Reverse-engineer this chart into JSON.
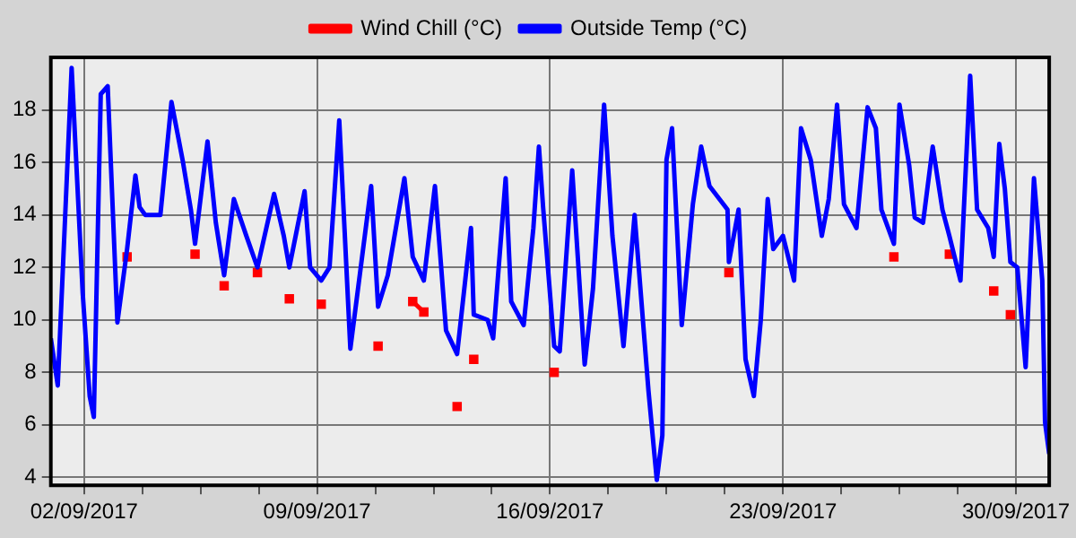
{
  "chart_data": {
    "type": "line",
    "legend": "top",
    "grid": true,
    "marker": "none",
    "line_style": "solid",
    "xlim": [
      "2017-09-01",
      "2017-10-01"
    ],
    "xticks": [
      {
        "value": "2017-09-02",
        "label": "02/09/2017"
      },
      {
        "value": "2017-09-03T18:00",
        "label": null
      },
      {
        "value": "2017-09-05T12:00",
        "label": null
      },
      {
        "value": "2017-09-07T06:00",
        "label": null
      },
      {
        "value": "2017-09-09",
        "label": "09/09/2017"
      },
      {
        "value": "2017-09-10T18:00",
        "label": null
      },
      {
        "value": "2017-09-12T12:00",
        "label": null
      },
      {
        "value": "2017-09-14T06:00",
        "label": null
      },
      {
        "value": "2017-09-16",
        "label": "16/09/2017"
      },
      {
        "value": "2017-09-17T18:00",
        "label": null
      },
      {
        "value": "2017-09-19T12:00",
        "label": null
      },
      {
        "value": "2017-09-21T06:00",
        "label": null
      },
      {
        "value": "2017-09-23",
        "label": "23/09/2017"
      },
      {
        "value": "2017-09-24T18:00",
        "label": null
      },
      {
        "value": "2017-09-26T12:00",
        "label": null
      },
      {
        "value": "2017-09-28T06:00",
        "label": null
      },
      {
        "value": "2017-09-30",
        "label": "30/09/2017"
      }
    ],
    "ylim": [
      3.7,
      20
    ],
    "yticks": [
      4,
      6,
      8,
      10,
      12,
      14,
      16,
      18
    ],
    "x": [
      "2017-09-01T00:00",
      "2017-09-01T05:00",
      "2017-09-01T15:00",
      "2017-09-01T23:00",
      "2017-09-02T04:00",
      "2017-09-02T07:00",
      "2017-09-02T12:00",
      "2017-09-02T17:00",
      "2017-09-03T00:00",
      "2017-09-03T07:00",
      "2017-09-03T13:00",
      "2017-09-03T16:00",
      "2017-09-03T20:00",
      "2017-09-04T07:00",
      "2017-09-04T15:00",
      "2017-09-04T23:00",
      "2017-09-05T05:00",
      "2017-09-05T08:00",
      "2017-09-05T17:00",
      "2017-09-05T23:00",
      "2017-09-06T05:00",
      "2017-09-06T12:00",
      "2017-09-06T21:00",
      "2017-09-07T05:00",
      "2017-09-07T17:00",
      "2017-09-08T00:00",
      "2017-09-08T04:00",
      "2017-09-08T15:00",
      "2017-09-08T19:00",
      "2017-09-09T03:00",
      "2017-09-09T09:00",
      "2017-09-09T16:00",
      "2017-09-10T00:00",
      "2017-09-10T15:00",
      "2017-09-10T20:00",
      "2017-09-11T03:00",
      "2017-09-11T15:00",
      "2017-09-11T21:00",
      "2017-09-12T05:00",
      "2017-09-12T13:00",
      "2017-09-12T21:00",
      "2017-09-13T05:00",
      "2017-09-13T15:00",
      "2017-09-13T17:00",
      "2017-09-14T03:00",
      "2017-09-14T07:00",
      "2017-09-14T16:00",
      "2017-09-14T20:00",
      "2017-09-15T05:00",
      "2017-09-15T12:00",
      "2017-09-15T16:00",
      "2017-09-15T19:00",
      "2017-09-16T03:00",
      "2017-09-16T07:00",
      "2017-09-16T16:00",
      "2017-09-17T01:00",
      "2017-09-17T07:00",
      "2017-09-17T15:00",
      "2017-09-17T21:00",
      "2017-09-18T05:00",
      "2017-09-18T13:00",
      "2017-09-18T23:00",
      "2017-09-19T05:00",
      "2017-09-19T09:00",
      "2017-09-19T12:00",
      "2017-09-19T16:00",
      "2017-09-19T23:00",
      "2017-09-20T07:00",
      "2017-09-20T13:00",
      "2017-09-20T19:00",
      "2017-09-21T08:00",
      "2017-09-21T09:00",
      "2017-09-21T16:00",
      "2017-09-21T21:00",
      "2017-09-22T03:00",
      "2017-09-22T08:00",
      "2017-09-22T13:00",
      "2017-09-22T17:00",
      "2017-09-23T00:00",
      "2017-09-23T08:00",
      "2017-09-23T13:00",
      "2017-09-23T20:00",
      "2017-09-24T04:00",
      "2017-09-24T09:00",
      "2017-09-24T15:00",
      "2017-09-24T20:00",
      "2017-09-25T05:00",
      "2017-09-25T13:00",
      "2017-09-25T19:00",
      "2017-09-25T23:00",
      "2017-09-26T08:00",
      "2017-09-26T12:00",
      "2017-09-26T19:00",
      "2017-09-26T23:00",
      "2017-09-27T05:00",
      "2017-09-27T12:00",
      "2017-09-27T19:00",
      "2017-09-28T00:00",
      "2017-09-28T08:00",
      "2017-09-28T15:00",
      "2017-09-28T20:00",
      "2017-09-29T04:00",
      "2017-09-29T08:00",
      "2017-09-29T12:00",
      "2017-09-29T16:00",
      "2017-09-29T20:00",
      "2017-09-30T01:00",
      "2017-09-30T07:00",
      "2017-09-30T13:00",
      "2017-09-30T19:00",
      "2017-09-30T21:00",
      "2017-10-01T00:00"
    ],
    "series": [
      {
        "name": "Wind Chill (°C)",
        "color": "#ff0000",
        "marker": "square",
        "values": [
          null,
          null,
          null,
          null,
          null,
          null,
          null,
          null,
          null,
          12.4,
          null,
          null,
          null,
          null,
          null,
          null,
          null,
          12.5,
          null,
          null,
          11.3,
          null,
          null,
          11.8,
          null,
          null,
          10.8,
          null,
          null,
          10.6,
          null,
          null,
          null,
          null,
          9,
          null,
          null,
          10.7,
          10.3,
          null,
          null,
          6.7,
          null,
          8.5,
          null,
          null,
          null,
          null,
          null,
          null,
          null,
          null,
          8,
          null,
          null,
          null,
          null,
          null,
          null,
          null,
          null,
          null,
          null,
          null,
          null,
          null,
          null,
          null,
          null,
          null,
          null,
          11.8,
          null,
          null,
          null,
          null,
          null,
          null,
          null,
          null,
          null,
          null,
          null,
          null,
          null,
          null,
          null,
          null,
          null,
          null,
          12.4,
          null,
          null,
          null,
          null,
          null,
          null,
          12.5,
          null,
          null,
          null,
          null,
          11.1,
          null,
          null,
          10.2,
          null,
          null,
          null,
          null,
          null,
          null
        ]
      },
      {
        "name": "Outside Temp (°C)",
        "color": "#0000ff",
        "values": [
          9.3,
          7.5,
          19.6,
          11,
          7.1,
          6.3,
          18.6,
          18.9,
          9.9,
          12.7,
          15.5,
          14.3,
          14,
          14,
          18.3,
          16.1,
          14.2,
          12.9,
          16.8,
          13.7,
          11.7,
          14.6,
          13.2,
          12,
          14.8,
          13.2,
          12,
          14.9,
          12,
          11.5,
          12,
          17.6,
          8.9,
          15.1,
          10.5,
          11.7,
          15.4,
          12.4,
          11.5,
          15.1,
          9.6,
          8.7,
          13.5,
          10.2,
          10,
          9.3,
          15.4,
          10.7,
          9.8,
          13.5,
          16.6,
          14.3,
          9,
          8.8,
          15.7,
          8.3,
          11.2,
          18.2,
          13.2,
          9,
          14,
          7.3,
          3.9,
          5.6,
          16.1,
          17.3,
          9.8,
          14.4,
          16.6,
          15.1,
          14.2,
          12.2,
          14.2,
          8.5,
          7.1,
          10,
          14.6,
          12.7,
          13.2,
          11.5,
          17.3,
          16.1,
          13.2,
          14.6,
          18.2,
          14.4,
          13.5,
          18.1,
          17.3,
          14.2,
          12.9,
          18.2,
          15.9,
          13.9,
          13.7,
          16.6,
          14.2,
          13.2,
          11.5,
          19.3,
          14.2,
          13.5,
          12.4,
          16.7,
          15,
          12.2,
          12,
          8.2,
          15.4,
          11.5,
          6.1,
          4.9
        ]
      }
    ]
  }
}
